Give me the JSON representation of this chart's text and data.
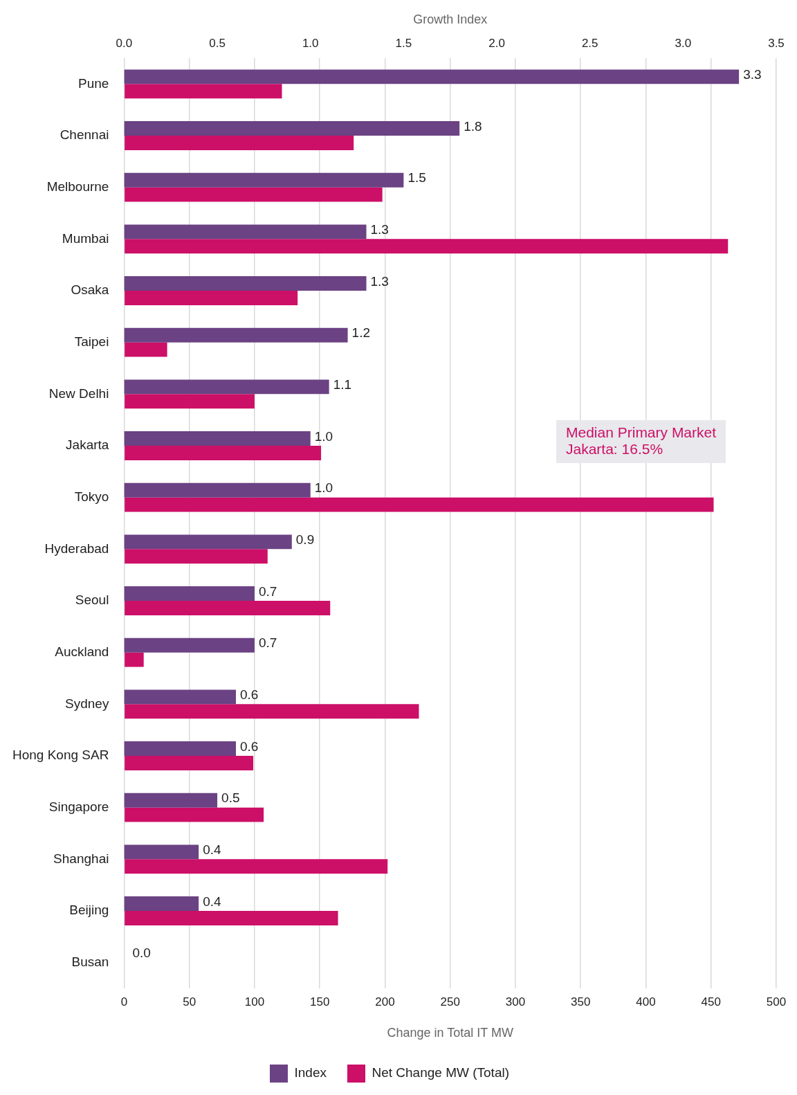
{
  "chart_data": {
    "type": "bar",
    "orientation": "horizontal",
    "categories": [
      "Pune",
      "Chennai",
      "Melbourne",
      "Mumbai",
      "Osaka",
      "Taipei",
      "New Delhi",
      "Jakarta",
      "Tokyo",
      "Hyderabad",
      "Seoul",
      "Auckland",
      "Sydney",
      "Hong Kong SAR",
      "Singapore",
      "Shanghai",
      "Beijing",
      "Busan"
    ],
    "series": [
      {
        "name": "Index",
        "color": "#6b4283",
        "axis": "x2",
        "values": [
          3.3,
          1.8,
          1.5,
          1.3,
          1.3,
          1.2,
          1.1,
          1.0,
          1.0,
          0.9,
          0.7,
          0.7,
          0.6,
          0.6,
          0.5,
          0.4,
          0.4,
          0.0
        ],
        "value_labels": [
          "3.3",
          "1.8",
          "1.5",
          "1.3",
          "1.3",
          "1.2",
          "1.1",
          "1.0",
          "1.0",
          "0.9",
          "0.7",
          "0.7",
          "0.6",
          "0.6",
          "0.5",
          "0.4",
          "0.4",
          "0.0"
        ]
      },
      {
        "name": "Net Change MW (Total)",
        "color": "#cc0f67",
        "values": [
          121,
          176,
          198,
          463,
          133,
          33,
          100,
          151,
          452,
          110,
          158,
          15,
          226,
          99,
          107,
          202,
          164,
          0
        ]
      }
    ],
    "xlabel": "Change in Total IT MW",
    "xlim": [
      0,
      500
    ],
    "xticks": [
      0,
      50,
      100,
      150,
      200,
      250,
      300,
      350,
      400,
      450,
      500
    ],
    "x2label": "Growth Index",
    "x2lim": [
      0,
      3.5
    ],
    "x2ticks": [
      {
        "value": 0,
        "label": "0.0"
      },
      {
        "value": 0.5,
        "label": "0.5"
      },
      {
        "value": 1,
        "label": "1.0"
      },
      {
        "value": 1.5,
        "label": "1.5"
      },
      {
        "value": 2,
        "label": "2.0"
      },
      {
        "value": 2.5,
        "label": "2.5"
      },
      {
        "value": 3,
        "label": "3.0"
      },
      {
        "value": 3.5,
        "label": "3.5"
      }
    ],
    "annotations": [
      "Median Primary Market\nJakarta: 16.5%"
    ],
    "grid": "x",
    "legend": "bottom"
  }
}
